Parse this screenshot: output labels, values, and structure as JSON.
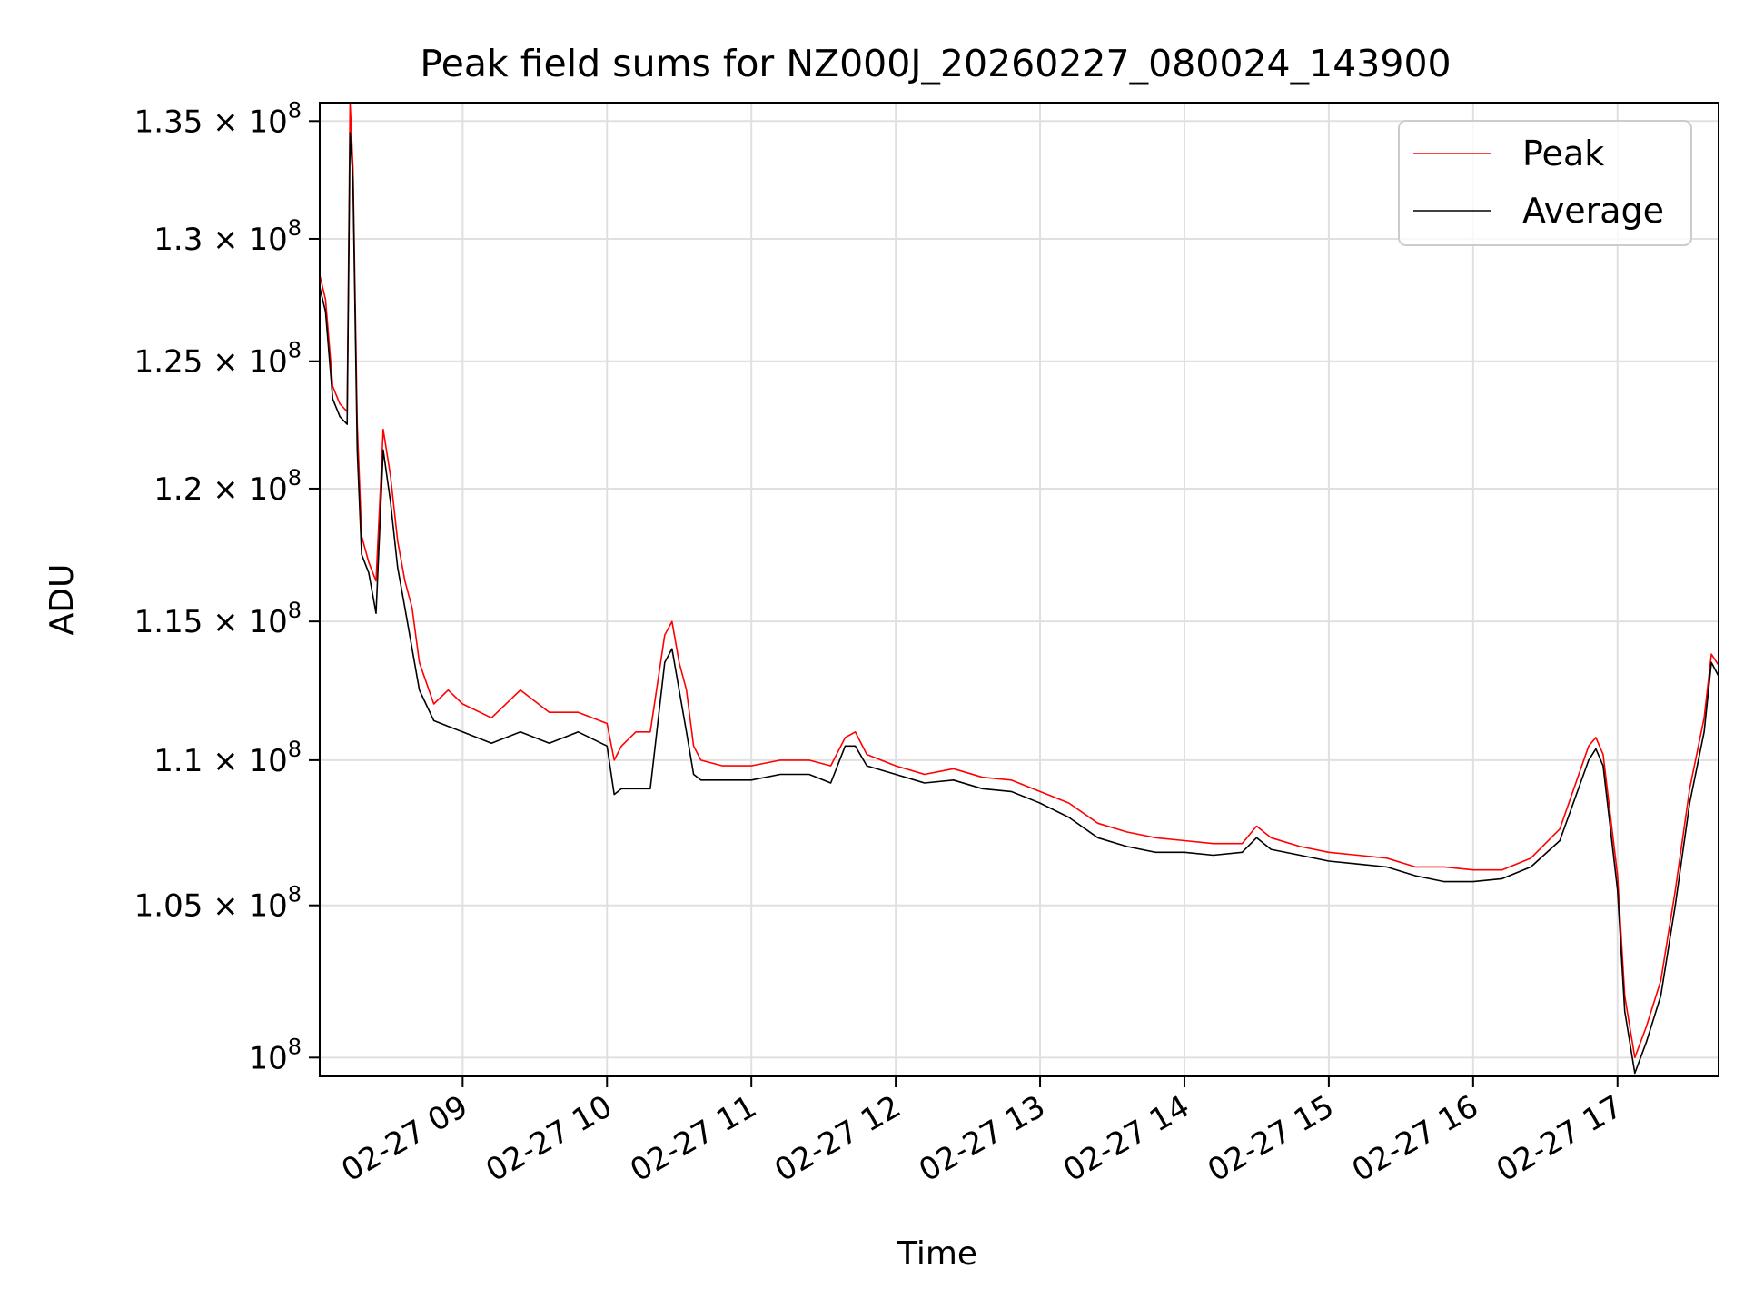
{
  "chart_data": {
    "type": "line",
    "title": "Peak field sums for NZ000J_20260227_080024_143900",
    "xlabel": "Time",
    "ylabel": "ADU",
    "y_scale": "log",
    "ylim": [
      99400000,
      135800000
    ],
    "xlim_hours": [
      8.01,
      17.7
    ],
    "grid": true,
    "legend_position": "top-right",
    "x_ticks": [
      {
        "value": 9,
        "label": "02-27 09"
      },
      {
        "value": 10,
        "label": "02-27 10"
      },
      {
        "value": 11,
        "label": "02-27 11"
      },
      {
        "value": 12,
        "label": "02-27 12"
      },
      {
        "value": 13,
        "label": "02-27 13"
      },
      {
        "value": 14,
        "label": "02-27 14"
      },
      {
        "value": 15,
        "label": "02-27 15"
      },
      {
        "value": 16,
        "label": "02-27 16"
      },
      {
        "value": 17,
        "label": "02-27 17"
      }
    ],
    "y_ticks": [
      {
        "value": 100000000,
        "mant": "10",
        "exp": "8"
      },
      {
        "value": 105000000,
        "mant": "1.05 × 10",
        "exp": "8"
      },
      {
        "value": 110000000,
        "mant": "1.1 × 10",
        "exp": "8"
      },
      {
        "value": 115000000,
        "mant": "1.15 × 10",
        "exp": "8"
      },
      {
        "value": 120000000,
        "mant": "1.2 × 10",
        "exp": "8"
      },
      {
        "value": 125000000,
        "mant": "1.25 × 10",
        "exp": "8"
      },
      {
        "value": 130000000,
        "mant": "1.3 × 10",
        "exp": "8"
      },
      {
        "value": 135000000,
        "mant": "1.35 × 10",
        "exp": "8"
      }
    ],
    "series": [
      {
        "name": "Peak",
        "color": "#ff0000",
        "x": [
          8.01,
          8.05,
          8.1,
          8.15,
          8.2,
          8.22,
          8.24,
          8.27,
          8.3,
          8.35,
          8.4,
          8.45,
          8.5,
          8.55,
          8.6,
          8.65,
          8.7,
          8.8,
          8.9,
          9.0,
          9.2,
          9.4,
          9.6,
          9.8,
          10.0,
          10.05,
          10.1,
          10.2,
          10.3,
          10.4,
          10.45,
          10.5,
          10.55,
          10.6,
          10.65,
          10.8,
          11.0,
          11.2,
          11.4,
          11.55,
          11.65,
          11.72,
          11.8,
          12.0,
          12.2,
          12.4,
          12.6,
          12.8,
          13.0,
          13.2,
          13.4,
          13.6,
          13.8,
          14.0,
          14.2,
          14.4,
          14.5,
          14.6,
          14.8,
          15.0,
          15.2,
          15.4,
          15.6,
          15.8,
          16.0,
          16.2,
          16.4,
          16.6,
          16.8,
          16.85,
          16.9,
          17.0,
          17.05,
          17.12,
          17.2,
          17.3,
          17.4,
          17.5,
          17.6,
          17.65,
          17.7
        ],
        "values": [
          128500000,
          127500000,
          124000000,
          123300000,
          123000000,
          135800000,
          133000000,
          122500000,
          118200000,
          117200000,
          116500000,
          122300000,
          120500000,
          118000000,
          116500000,
          115500000,
          113500000,
          112000000,
          112500000,
          112000000,
          111500000,
          112500000,
          111700000,
          111700000,
          111300000,
          110000000,
          110500000,
          111000000,
          111000000,
          114500000,
          115000000,
          113500000,
          112500000,
          110500000,
          110000000,
          109800000,
          109800000,
          110000000,
          110000000,
          109800000,
          110800000,
          111000000,
          110200000,
          109800000,
          109500000,
          109700000,
          109400000,
          109300000,
          108900000,
          108500000,
          107800000,
          107500000,
          107300000,
          107200000,
          107100000,
          107100000,
          107700000,
          107300000,
          107000000,
          106800000,
          106700000,
          106600000,
          106300000,
          106300000,
          106200000,
          106200000,
          106600000,
          107600000,
          110500000,
          110800000,
          110200000,
          106000000,
          102000000,
          100000000,
          101000000,
          102500000,
          105500000,
          109000000,
          111500000,
          113800000,
          113400000
        ]
      },
      {
        "name": "Average",
        "color": "#000000",
        "x": [
          8.01,
          8.05,
          8.1,
          8.15,
          8.2,
          8.22,
          8.24,
          8.27,
          8.3,
          8.35,
          8.4,
          8.45,
          8.5,
          8.55,
          8.6,
          8.65,
          8.7,
          8.8,
          8.9,
          9.0,
          9.2,
          9.4,
          9.6,
          9.8,
          10.0,
          10.05,
          10.1,
          10.2,
          10.3,
          10.4,
          10.45,
          10.5,
          10.55,
          10.6,
          10.65,
          10.8,
          11.0,
          11.2,
          11.4,
          11.55,
          11.65,
          11.72,
          11.8,
          12.0,
          12.2,
          12.4,
          12.6,
          12.8,
          13.0,
          13.2,
          13.4,
          13.6,
          13.8,
          14.0,
          14.2,
          14.4,
          14.5,
          14.6,
          14.8,
          15.0,
          15.2,
          15.4,
          15.6,
          15.8,
          16.0,
          16.2,
          16.4,
          16.6,
          16.8,
          16.85,
          16.9,
          17.0,
          17.05,
          17.12,
          17.2,
          17.3,
          17.4,
          17.5,
          17.6,
          17.65,
          17.7
        ],
        "values": [
          128000000,
          127000000,
          123500000,
          122800000,
          122500000,
          134500000,
          132500000,
          121500000,
          117500000,
          116800000,
          115300000,
          121500000,
          119500000,
          117000000,
          115500000,
          114000000,
          112500000,
          111400000,
          111200000,
          111000000,
          110600000,
          111000000,
          110600000,
          111000000,
          110500000,
          108800000,
          109000000,
          109000000,
          109000000,
          113500000,
          114000000,
          112500000,
          111000000,
          109500000,
          109300000,
          109300000,
          109300000,
          109500000,
          109500000,
          109200000,
          110500000,
          110500000,
          109800000,
          109500000,
          109200000,
          109300000,
          109000000,
          108900000,
          108500000,
          108000000,
          107300000,
          107000000,
          106800000,
          106800000,
          106700000,
          106800000,
          107300000,
          106900000,
          106700000,
          106500000,
          106400000,
          106300000,
          106000000,
          105800000,
          105800000,
          105900000,
          106300000,
          107200000,
          110000000,
          110400000,
          109800000,
          105500000,
          101500000,
          99500000,
          100500000,
          102000000,
          105000000,
          108500000,
          111000000,
          113500000,
          113000000
        ]
      }
    ]
  }
}
